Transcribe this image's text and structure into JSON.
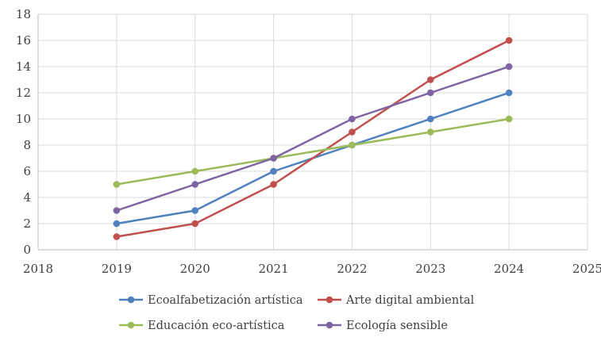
{
  "chart_data": {
    "type": "line",
    "title": "",
    "xlabel": "",
    "ylabel": "",
    "x": [
      2019,
      2020,
      2021,
      2022,
      2023,
      2024
    ],
    "xlim": [
      2018,
      2025
    ],
    "xticks": [
      "2018",
      "2019",
      "2020",
      "2021",
      "2022",
      "2023",
      "2024",
      "2025"
    ],
    "ylim": [
      0,
      18
    ],
    "yticks": [
      "0",
      "2",
      "4",
      "6",
      "8",
      "10",
      "12",
      "14",
      "16",
      "18"
    ],
    "grid": true,
    "legend_position": "bottom",
    "series": [
      {
        "name": "Ecoalfabetización artística",
        "color": "#4F81BD",
        "values": [
          2,
          3,
          6,
          8,
          10,
          12
        ]
      },
      {
        "name": "Arte digital ambiental",
        "color": "#C0504D",
        "values": [
          1,
          2,
          5,
          9,
          13,
          16
        ]
      },
      {
        "name": "Educación eco-artística",
        "color": "#9BBB59",
        "values": [
          5,
          6,
          7,
          8,
          9,
          10
        ]
      },
      {
        "name": "Ecología sensible",
        "color": "#8064A2",
        "values": [
          3,
          5,
          7,
          10,
          12,
          14
        ]
      }
    ]
  }
}
